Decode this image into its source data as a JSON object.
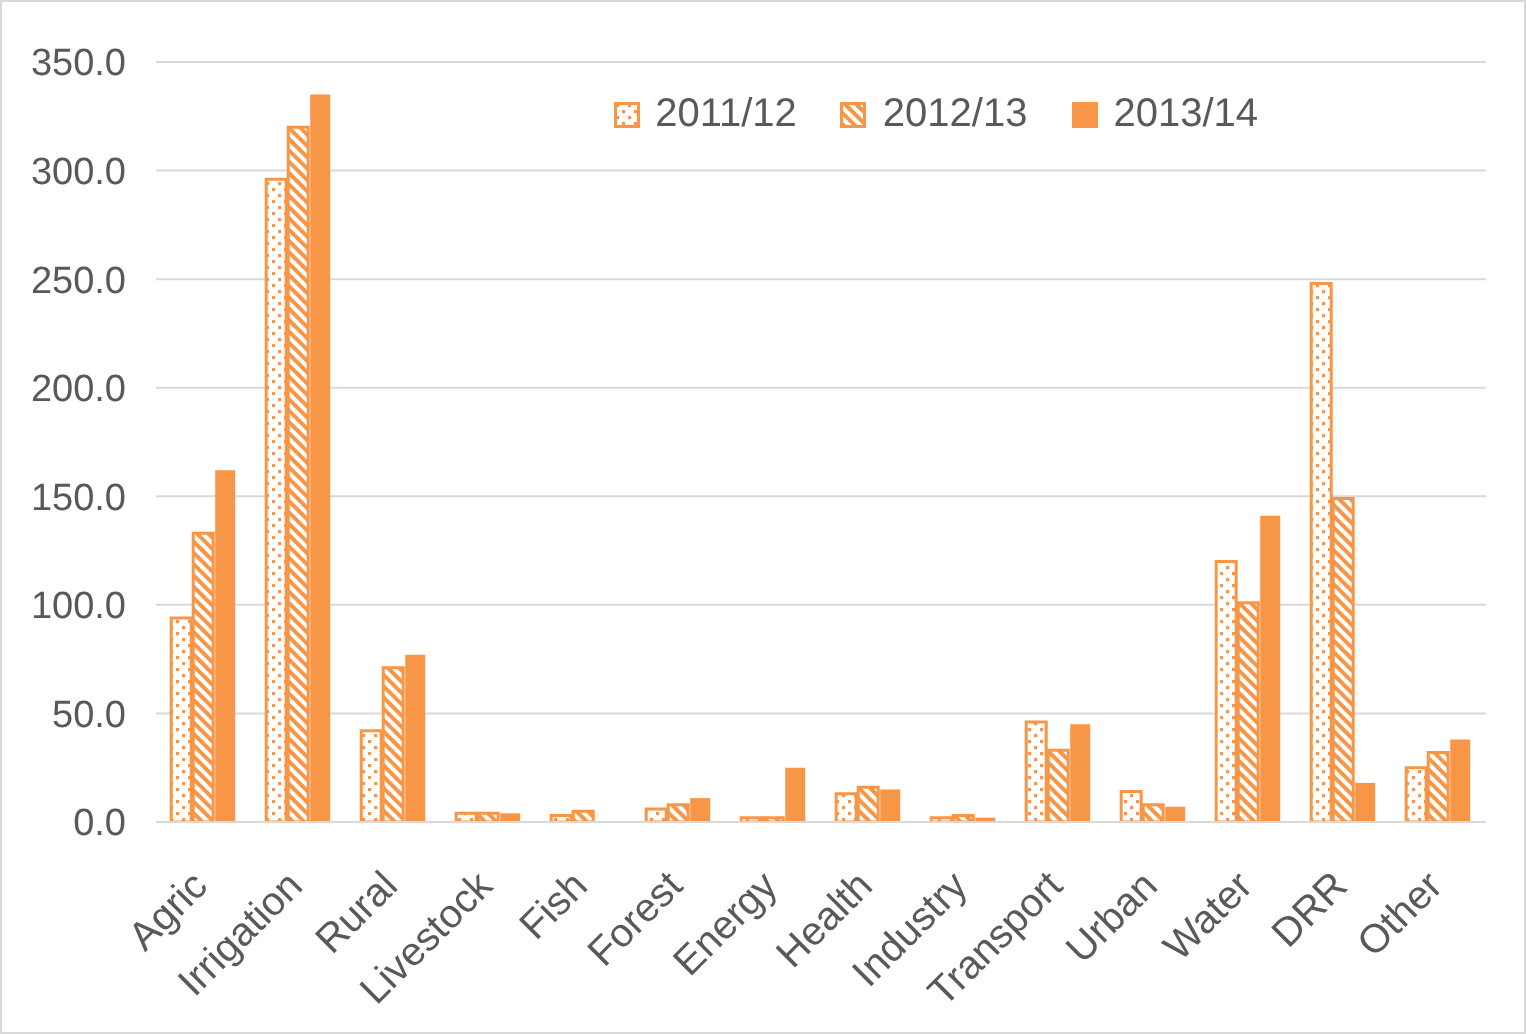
{
  "chart_data": {
    "type": "bar",
    "categories": [
      "Agric",
      "Irrigation",
      "Rural",
      "Livestock",
      "Fish",
      "Forest",
      "Energy",
      "Health",
      "Industry",
      "Transport",
      "Urban",
      "Water",
      "DRR",
      "Other"
    ],
    "series": [
      {
        "name": "2011/12",
        "color": "#f79646",
        "values": [
          94,
          296,
          42,
          4,
          3,
          6,
          2,
          13,
          2,
          46,
          14,
          120,
          248,
          25
        ]
      },
      {
        "name": "2012/13",
        "color": "#f79646",
        "values": [
          133,
          320,
          71,
          4,
          5,
          8,
          2,
          16,
          3,
          33,
          8,
          101,
          149,
          32
        ]
      },
      {
        "name": "2013/14",
        "color": "#f79646",
        "values": [
          162,
          335,
          77,
          4,
          0,
          11,
          25,
          15,
          2,
          45,
          7,
          141,
          18,
          38
        ]
      }
    ],
    "ylim": [
      0,
      350
    ],
    "yticks": [
      {
        "value": 0,
        "label": "0.0"
      },
      {
        "value": 50,
        "label": "50.0"
      },
      {
        "value": 100,
        "label": "100.0"
      },
      {
        "value": 150,
        "label": "150.0"
      },
      {
        "value": 200,
        "label": "200.0"
      },
      {
        "value": 250,
        "label": "250.0"
      },
      {
        "value": 300,
        "label": "300.0"
      },
      {
        "value": 350,
        "label": "350.0"
      }
    ],
    "grid": "y",
    "legend": "top right"
  }
}
